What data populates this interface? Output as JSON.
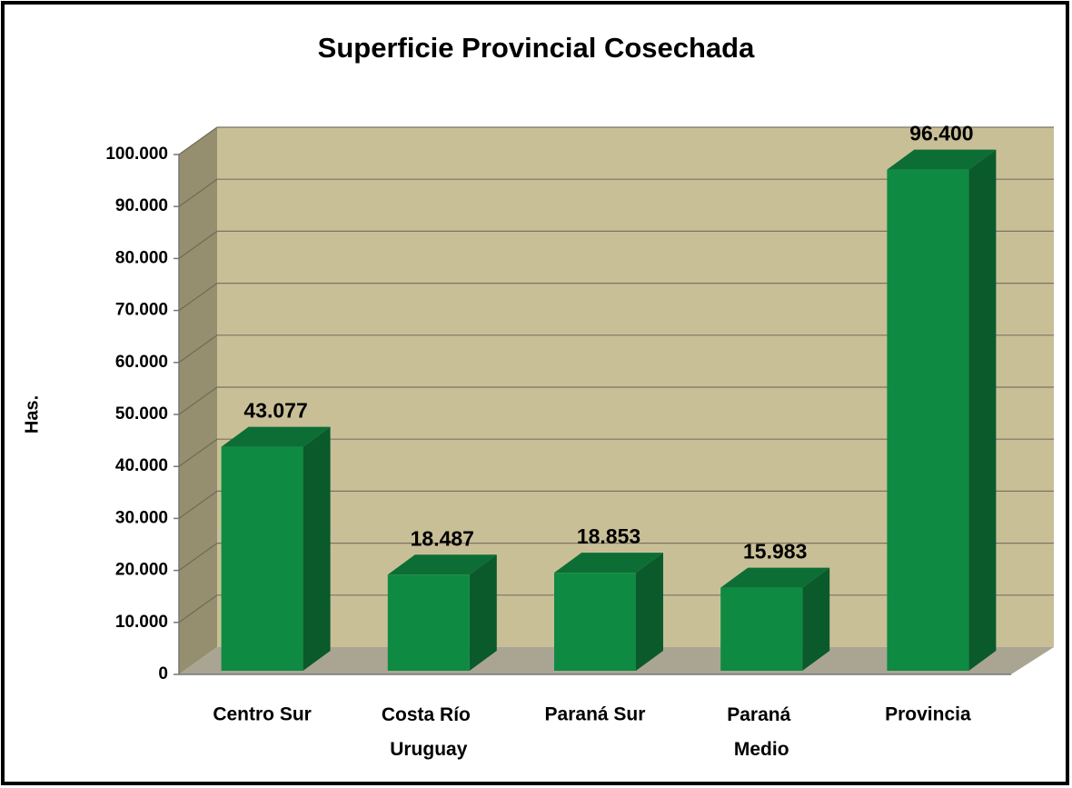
{
  "chart_data": {
    "type": "bar3d",
    "title": "Superficie Provincial Cosechada",
    "y_label": "Has.",
    "categories": [
      "Centro Sur",
      "Costa Río Uruguay",
      "Paraná Sur",
      "Paraná Medio",
      "Provincia"
    ],
    "values": [
      43077,
      18487,
      18853,
      15983,
      96400
    ],
    "value_labels": [
      "43.077",
      "18.487",
      "18.853",
      "15.983",
      "96.400"
    ],
    "color": "#0f8a42",
    "ylim": [
      0,
      100000
    ],
    "yticks": [
      0,
      {
        "value": 10000,
        "label": "10.000"
      },
      {
        "value": 20000,
        "label": "20.000"
      },
      {
        "value": 30000,
        "label": "30.000"
      },
      {
        "value": 40000,
        "label": "40.000"
      },
      {
        "value": 50000,
        "label": "50.000"
      },
      {
        "value": 60000,
        "label": "60.000"
      },
      {
        "value": 70000,
        "label": "70.000"
      },
      {
        "value": 80000,
        "label": "80.000"
      },
      {
        "value": 90000,
        "label": "90.000"
      },
      {
        "value": 100000,
        "label": "100.000"
      }
    ],
    "grid": true
  }
}
